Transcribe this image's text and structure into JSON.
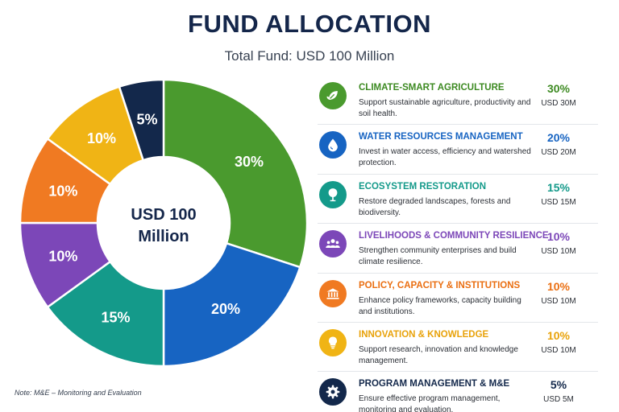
{
  "header": {
    "title": "FUND ALLOCATION",
    "subtitle": "Total Fund: USD 100 Million"
  },
  "center_label": [
    "USD 100",
    "Million"
  ],
  "note": "Note: M&E – Monitoring and Evaluation",
  "chart_data": {
    "type": "pie",
    "subtype": "donut",
    "title": "FUND ALLOCATION",
    "subtitle": "Total Fund: USD 100 Million",
    "center_text": "USD 100 Million",
    "unit": "%",
    "categories": [
      "CLIMATE-SMART AGRICULTURE",
      "WATER RESOURCES MANAGEMENT",
      "ECOSYSTEM RESTORATION",
      "LIVELIHOODS & COMMUNITY RESILIENCE",
      "POLICY, CAPACITY & INSTITUTIONS",
      "INNOVATION & KNOWLEDGE",
      "PROGRAM MANAGEMENT & M&E"
    ],
    "values": [
      30,
      20,
      15,
      10,
      10,
      10,
      5
    ],
    "labels": [
      "30%",
      "20%",
      "15%",
      "10%",
      "10%",
      "10%",
      "5%"
    ],
    "amounts": [
      "USD 30M",
      "USD 20M",
      "USD 15M",
      "USD 10M",
      "USD 10M",
      "USD 10M",
      "USD 5M"
    ],
    "colors": [
      "#4a9a2e",
      "#1764c2",
      "#149a8a",
      "#7c47b8",
      "#f07a22",
      "#f0b415",
      "#13284b"
    ],
    "legend_position": "right"
  },
  "legend": [
    {
      "title": "CLIMATE-SMART AGRICULTURE",
      "desc": "Support sustainable agriculture, productivity and soil health.",
      "pct": "30%",
      "amount": "USD 30M",
      "color": "#4a9a2e",
      "text_color": "#3d8a22",
      "icon": "leaf-icon"
    },
    {
      "title": "WATER RESOURCES MANAGEMENT",
      "desc": "Invest in water access, efficiency and watershed protection.",
      "pct": "20%",
      "amount": "USD 20M",
      "color": "#1764c2",
      "text_color": "#1764c2",
      "icon": "water-drop-icon"
    },
    {
      "title": "ECOSYSTEM RESTORATION",
      "desc": "Restore degraded landscapes, forests and biodiversity.",
      "pct": "15%",
      "amount": "USD 15M",
      "color": "#149a8a",
      "text_color": "#149a8a",
      "icon": "tree-icon"
    },
    {
      "title": "LIVELIHOODS & COMMUNITY RESILIENCE",
      "desc": "Strengthen community enterprises and build climate resilience.",
      "pct": "10%",
      "amount": "USD 10M",
      "color": "#7c47b8",
      "text_color": "#7c47b8",
      "icon": "community-icon"
    },
    {
      "title": "POLICY, CAPACITY & INSTITUTIONS",
      "desc": "Enhance policy frameworks, capacity building and institutions.",
      "pct": "10%",
      "amount": "USD 10M",
      "color": "#f07a22",
      "text_color": "#ea6f12",
      "icon": "institution-icon"
    },
    {
      "title": "INNOVATION & KNOWLEDGE",
      "desc": "Support research, innovation and knowledge management.",
      "pct": "10%",
      "amount": "USD 10M",
      "color": "#f0b415",
      "text_color": "#e8a20a",
      "icon": "lightbulb-icon"
    },
    {
      "title": "PROGRAM MANAGEMENT & M&E",
      "desc": "Ensure effective program management, monitoring and evaluation.",
      "pct": "5%",
      "amount": "USD 5M",
      "color": "#13284b",
      "text_color": "#13284b",
      "icon": "gear-icon"
    }
  ]
}
